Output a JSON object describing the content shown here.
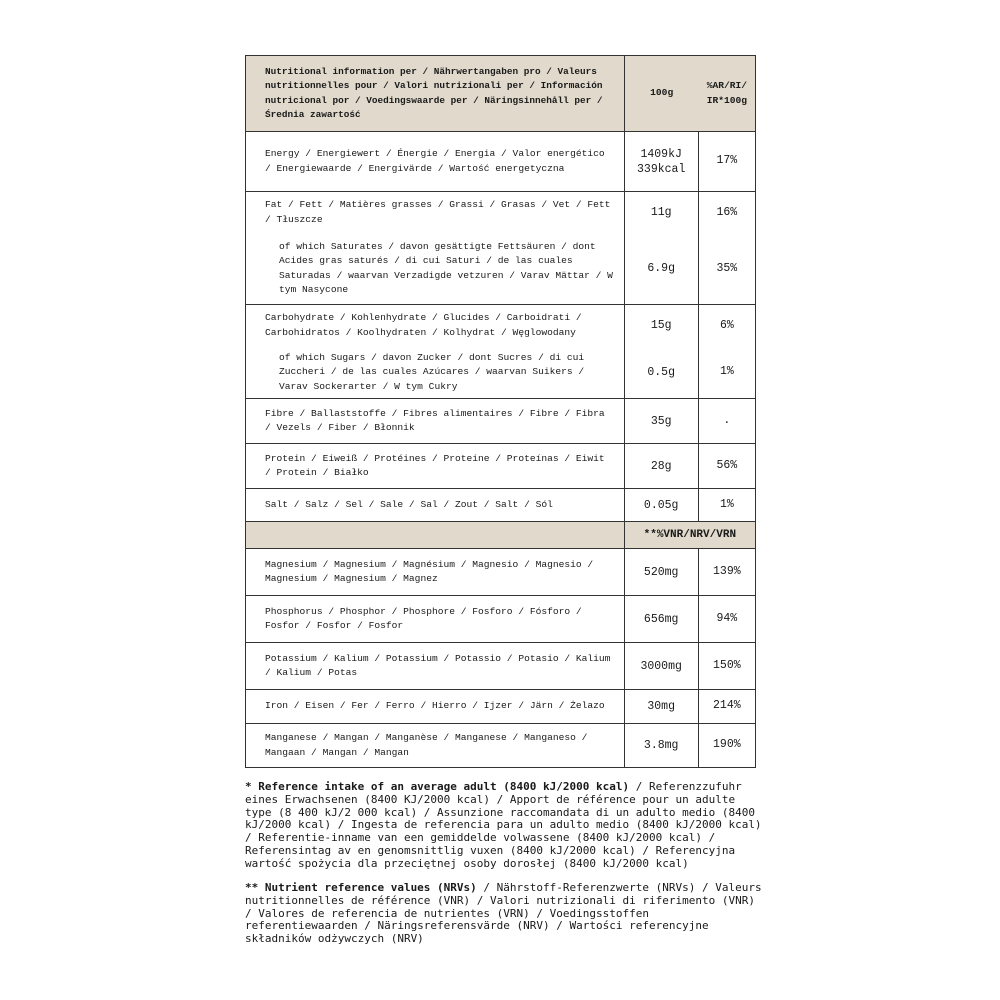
{
  "header": {
    "label": "Nutritional information per /  Nährwertangaben pro / Valeurs nutritionnelles pour / Valori nutrizionali per / Información nutricional por / Voedingswaarde per  / Näringsinnehåll per / Średnia zawartość",
    "col_100g": "100g",
    "col_ri": "%AR/RI/ IR*100g"
  },
  "rows": [
    {
      "label": "Energy / Energiewert / Énergie / Energia / Valor energético / Energiewaarde / Energivärde / Wartość energetyczna",
      "value": "1409kJ 339kcal",
      "percent": "17%"
    },
    {
      "label": "Fat / Fett / Matières grasses / Grassi / Grasas / Vet / Fett / Tłuszcze",
      "value": "11g",
      "percent": "16%"
    },
    {
      "label": "of which Saturates / davon gesättigte Fettsäuren / dont Acides gras saturés / di cui Saturi / de las cuales Saturadas / waarvan Verzadigde vetzuren / Varav Mättar / W tym Nasycone",
      "value": "6.9g",
      "percent": "35%"
    },
    {
      "label": "Carbohydrate / Kohlenhydrate / Glucides / Carboidrati / Carbohidratos / Koolhydraten / Kolhydrat / Węglowodany",
      "value": "15g",
      "percent": "6%"
    },
    {
      "label": "of which Sugars / davon Zucker / dont Sucres / di cui Zuccheri / de las cuales Azúcares / waarvan Suikers / Varav Sockerarter  / W tym Cukry",
      "value": "0.5g",
      "percent": "1%"
    },
    {
      "label": "Fibre / Ballaststoffe / Fibres alimentaires / Fibre / Fibra / Vezels / Fiber / Błonnik",
      "value": "35g",
      "percent": "."
    },
    {
      "label": "Protein / Eiweiß / Protéines / Proteine / Proteínas / Eiwit / Protein / Białko",
      "value": "28g",
      "percent": "56%"
    },
    {
      "label": "Salt / Salz / Sel / Sale / Sal / Zout / Salt / Sól",
      "value": "0.05g",
      "percent": "1%"
    }
  ],
  "vnr_header": "**%VNR/NRV/VRN",
  "minerals": [
    {
      "label": "Magnesium / Magnesium / Magnésium / Magnesio / Magnesio / Magnesium / Magnesium / Magnez",
      "value": "520mg",
      "percent": "139%"
    },
    {
      "label": "Phosphorus / Phosphor / Phosphore / Fosforo / Fósforo / Fosfor / Fosfor / Fosfor",
      "value": "656mg",
      "percent": "94%"
    },
    {
      "label": "Potassium / Kalium / Potassium / Potassio / Potasio / Kalium / Kalium / Potas",
      "value": "3000mg",
      "percent": "150%"
    },
    {
      "label": "Iron / Eisen / Fer / Ferro / Hierro / Ijzer / Järn / Żelazo",
      "value": "30mg",
      "percent": "214%"
    },
    {
      "label": "Manganese / Mangan / Manganèse / Manganese / Manganeso / Mangaan / Mangan / Mangan",
      "value": "3.8mg",
      "percent": "190%"
    }
  ],
  "footnotes": {
    "ri_bold": "* Reference intake of an average adult (8400 kJ/2000 kcal)",
    "ri_text": " / Referenzzufuhr eines Erwachsenen (8400 KJ/2000 kcal) / Apport de référence pour un adulte type (8 400 kJ/2 000 kcal) / Assunzione raccomandata di un adulto medio (8400 kJ/2000 kcal) / Ingesta de referencia para un adulto medio (8400 kJ/2000 kcal) / Referentie-inname van een gemiddelde volwassene (8400 kJ/2000 kcal) / Referensintag av en genomsnittlig vuxen (8400 kJ/2000 kcal) / Referencyjna wartość spożycia dla przeciętnej osoby dorosłej (8400 kJ/2000 kcal)",
    "nrv_bold": "** Nutrient reference values (NRVs)",
    "nrv_text": " / Nährstoff-Referenzwerte (NRVs) / Valeurs nutritionnelles de référence (VNR) / Valori nutrizionali di riferimento (VNR) / Valores de referencia de nutrientes (VRN) / Voedingsstoffen referentiewaarden / Näringsreferensvärde (NRV) / Wartości referencyjne składników odżywczych (NRV)"
  },
  "colors": {
    "header_bg": "#e0d9cc",
    "border": "#333333"
  }
}
